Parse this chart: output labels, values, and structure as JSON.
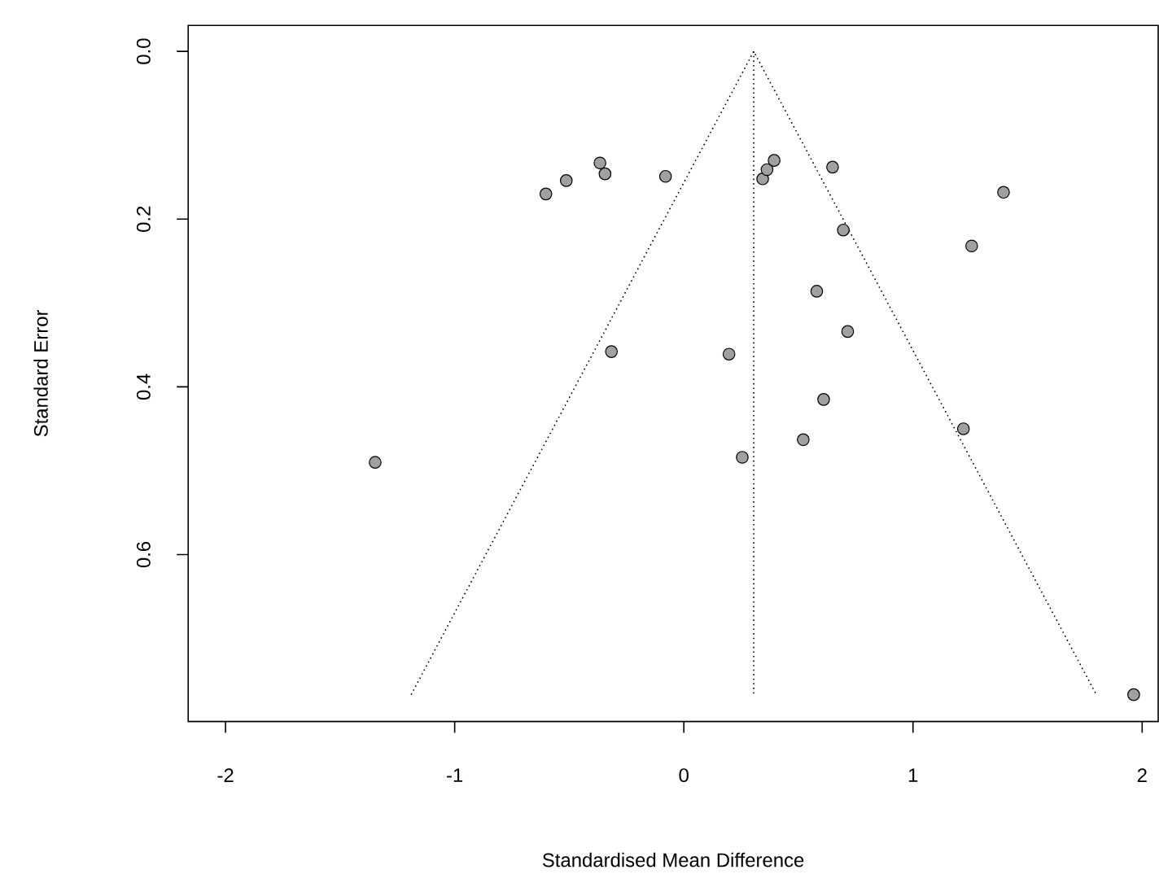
{
  "chart_data": {
    "type": "scatter",
    "xlabel": "Standardised Mean Difference",
    "ylabel": "Standard Error",
    "xlim": [
      -2.163,
      2.07
    ],
    "ylim": [
      0.799,
      -0.031
    ],
    "xticks": [
      -2,
      -1,
      0,
      1,
      2
    ],
    "yticks": [
      {
        "value": 0,
        "label": "0.0"
      },
      {
        "value": 0.2,
        "label": "0.2"
      },
      {
        "value": 0.4,
        "label": "0.4"
      },
      {
        "value": 0.6,
        "label": "0.6"
      }
    ],
    "grid": false,
    "series": [
      {
        "type": "line",
        "line_style": "dotted",
        "marker": "none",
        "color": "#000000",
        "x": [
          -1.19,
          0.305,
          1.8
        ],
        "values": [
          0.767,
          0,
          0.767
        ]
      },
      {
        "type": "line",
        "line_style": "dotted",
        "marker": "none",
        "color": "#000000",
        "x": [
          0.305,
          0.305
        ],
        "values": [
          0,
          0.767
        ]
      },
      {
        "marker": "circle",
        "color": "#a0a0a0",
        "x": [
          -0.602,
          -0.513,
          -0.366,
          -0.344,
          -0.08,
          0.344,
          0.363,
          0.394,
          0.649,
          1.395,
          0.696,
          1.256,
          0.58,
          0.715,
          -0.316,
          0.197,
          0.61,
          1.22,
          0.521,
          0.255,
          -1.347,
          1.963
        ],
        "values": [
          0.17,
          0.154,
          0.133,
          0.146,
          0.149,
          0.152,
          0.141,
          0.13,
          0.138,
          0.168,
          0.213,
          0.232,
          0.286,
          0.334,
          0.358,
          0.361,
          0.415,
          0.45,
          0.463,
          0.484,
          0.49,
          0.767
        ]
      }
    ]
  }
}
